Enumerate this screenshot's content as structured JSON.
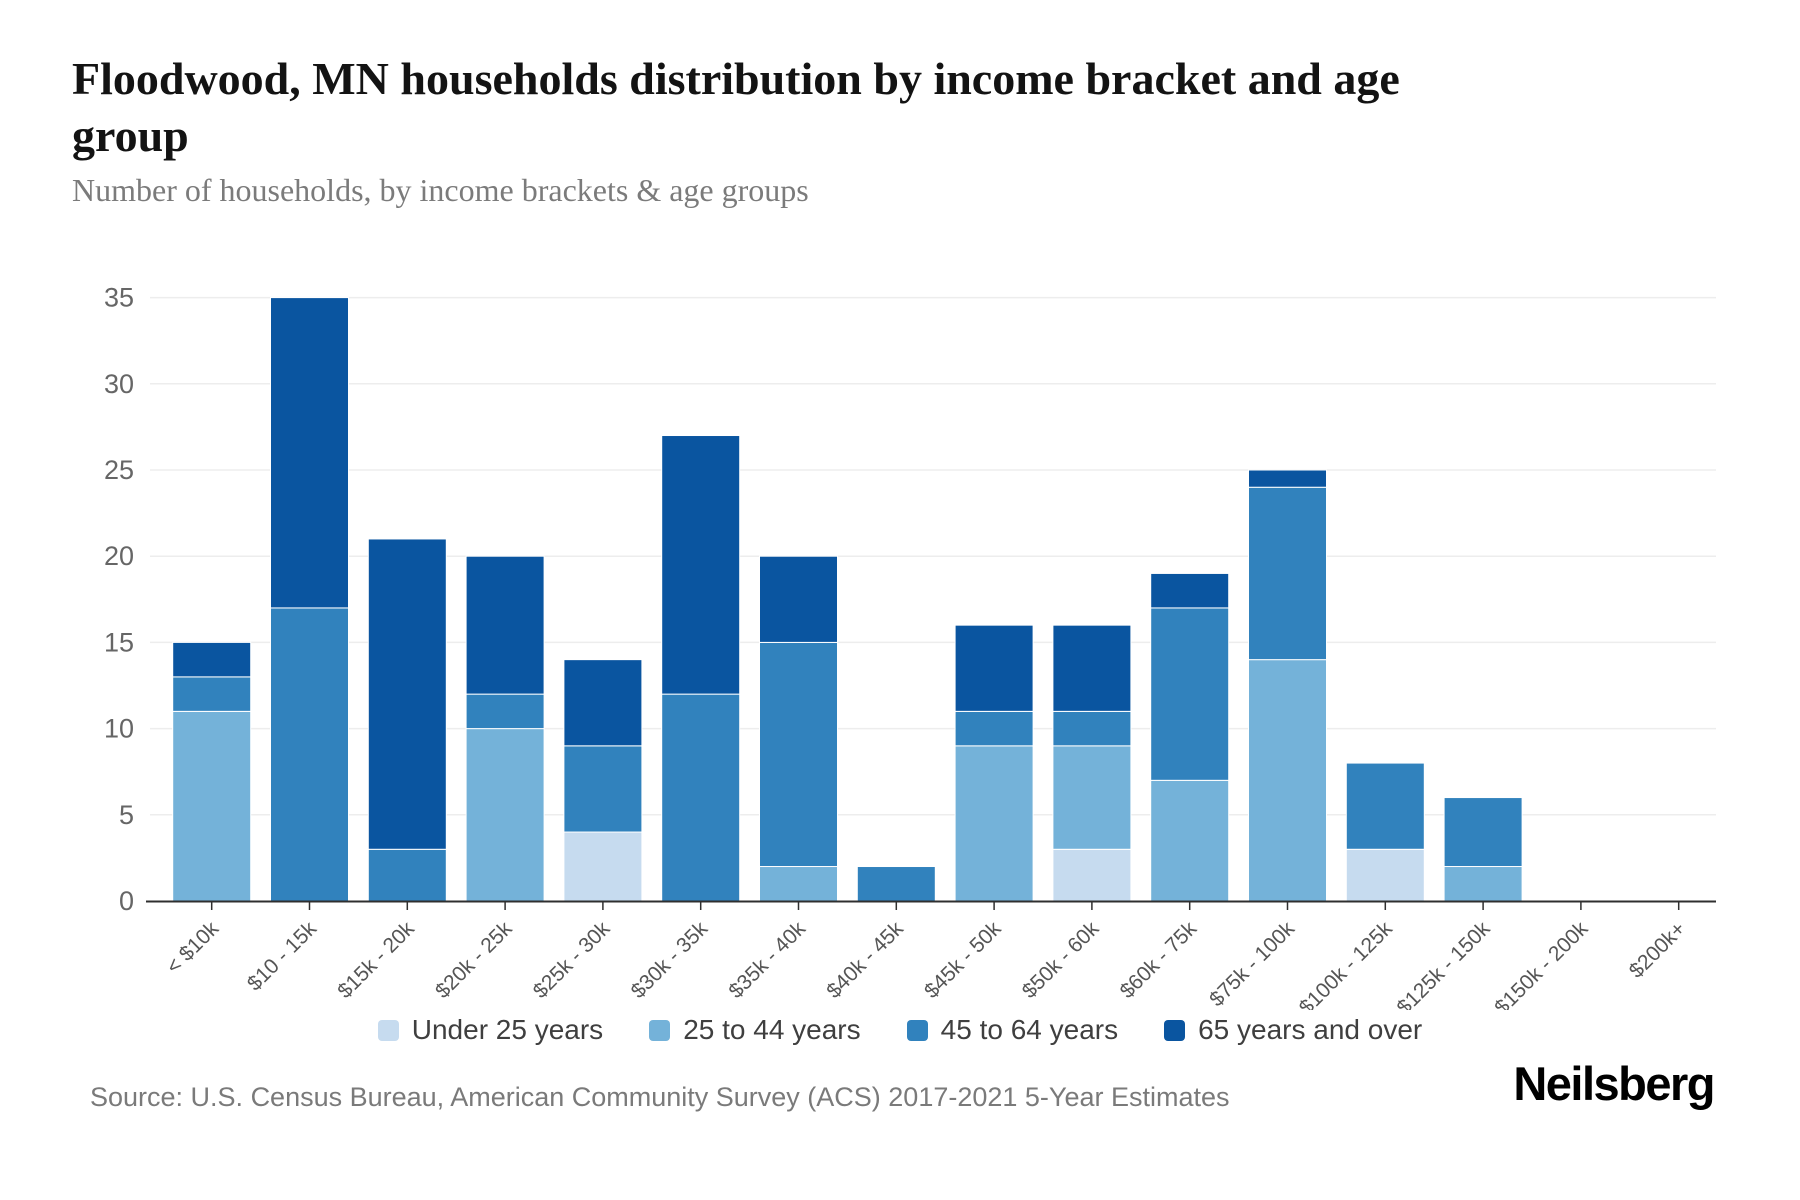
{
  "title": "Floodwood, MN households distribution by income bracket and age group",
  "subtitle": "Number of households, by income brackets & age groups",
  "footer": {
    "source": "Source: U.S. Census Bureau, American Community Survey (ACS) 2017-2021 5-Year Estimates",
    "brand": "Neilsberg"
  },
  "colors": {
    "under_25": "#c6dbef",
    "age_25_44": "#74b2d9",
    "age_45_64": "#3182bd",
    "age_65_over": "#0a55a0",
    "gridline": "#ededed",
    "axis_line": "#2f2f2f",
    "axis_label": "#666666",
    "x_label": "#555555"
  },
  "chart_data": {
    "type": "bar",
    "stacked": true,
    "title": "Floodwood, MN households distribution by income bracket and age group",
    "xlabel": "",
    "ylabel": "",
    "ylim": [
      0,
      35
    ],
    "yticks": [
      0,
      5,
      10,
      15,
      20,
      25,
      30,
      35
    ],
    "grid": true,
    "legend_position": "bottom",
    "categories": [
      "< $10k",
      "$10 - 15k",
      "$15k - 20k",
      "$20k - 25k",
      "$25k - 30k",
      "$30k - 35k",
      "$35k - 40k",
      "$40k - 45k",
      "$45k - 50k",
      "$50k - 60k",
      "$60k - 75k",
      "$75k - 100k",
      "$100k - 125k",
      "$125k - 150k",
      "$150k - 200k",
      "$200k+"
    ],
    "series": [
      {
        "name": "Under 25 years",
        "color": "#c6dbef",
        "values": [
          0,
          0,
          0,
          0,
          4,
          0,
          0,
          0,
          0,
          3,
          0,
          0,
          3,
          0,
          0,
          0
        ]
      },
      {
        "name": "25 to 44 years",
        "color": "#74b2d9",
        "values": [
          11,
          0,
          0,
          10,
          0,
          0,
          2,
          0,
          9,
          6,
          7,
          14,
          0,
          2,
          0,
          0
        ]
      },
      {
        "name": "45 to 64 years",
        "color": "#3182bd",
        "values": [
          2,
          17,
          3,
          2,
          5,
          12,
          13,
          2,
          2,
          2,
          10,
          10,
          5,
          4,
          0,
          0
        ]
      },
      {
        "name": "65 years and over",
        "color": "#0a55a0",
        "values": [
          2,
          18,
          18,
          8,
          5,
          15,
          5,
          0,
          5,
          5,
          2,
          1,
          0,
          0,
          0,
          0
        ]
      }
    ],
    "totals": [
      15,
      35,
      21,
      20,
      14,
      27,
      20,
      2,
      16,
      16,
      19,
      25,
      8,
      6,
      0,
      0
    ]
  }
}
